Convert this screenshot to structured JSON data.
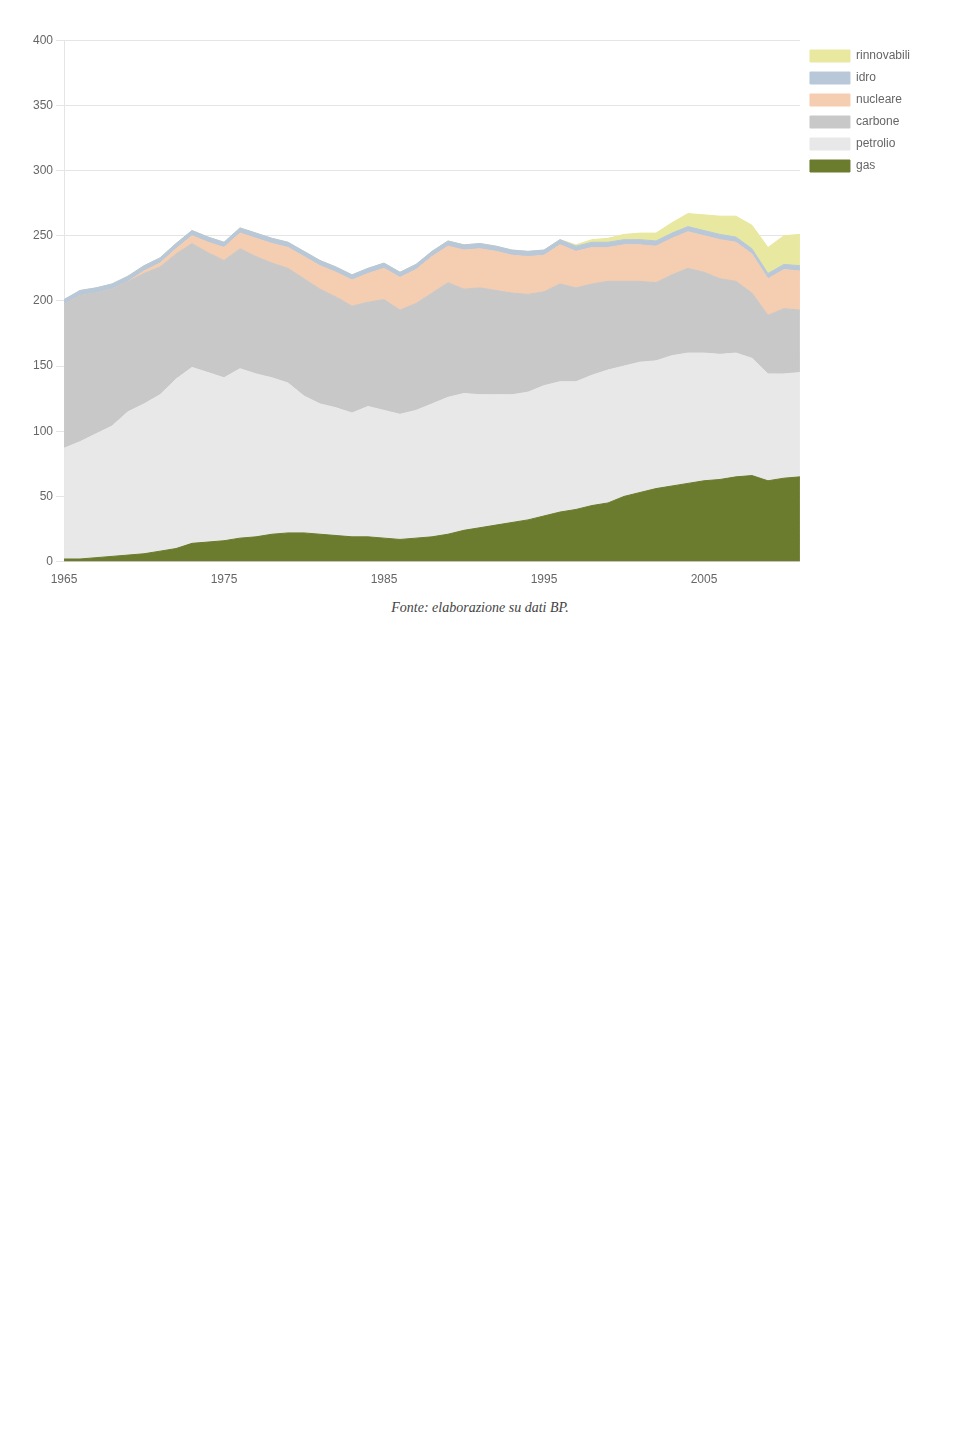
{
  "chart_data": {
    "type": "area",
    "stacked": true,
    "grid": true,
    "legend": "right",
    "annotations": [
      "Fonte: elaborazione su dati BP."
    ],
    "x": [
      1965,
      1966,
      1967,
      1968,
      1969,
      1970,
      1971,
      1972,
      1973,
      1974,
      1975,
      1976,
      1977,
      1978,
      1979,
      1980,
      1981,
      1982,
      1983,
      1984,
      1985,
      1986,
      1987,
      1988,
      1989,
      1990,
      1991,
      1992,
      1993,
      1994,
      1995,
      1996,
      1997,
      1998,
      1999,
      2000,
      2001,
      2002,
      2003,
      2004,
      2005,
      2006,
      2007,
      2008,
      2009,
      2010,
      2011
    ],
    "xlim": [
      1965,
      2011
    ],
    "xticks": [
      1965,
      1975,
      1985,
      1995,
      2005
    ],
    "ylim": [
      0,
      400
    ],
    "yticks": [
      0,
      50,
      100,
      150,
      200,
      250,
      300,
      350,
      400
    ],
    "series": [
      {
        "name": "gas",
        "color": "#6b7c2e",
        "values": [
          2,
          2,
          3,
          4,
          5,
          6,
          8,
          10,
          14,
          15,
          16,
          18,
          19,
          21,
          22,
          22,
          21,
          20,
          19,
          19,
          18,
          17,
          18,
          19,
          21,
          24,
          26,
          28,
          30,
          32,
          35,
          38,
          40,
          43,
          45,
          50,
          53,
          56,
          58,
          60,
          62,
          63,
          65,
          66,
          62,
          64,
          65
        ]
      },
      {
        "name": "petrolio",
        "color": "#e8e8e8",
        "values": [
          85,
          90,
          95,
          100,
          110,
          115,
          120,
          130,
          135,
          130,
          125,
          130,
          125,
          120,
          115,
          105,
          100,
          98,
          95,
          100,
          98,
          96,
          98,
          102,
          105,
          105,
          102,
          100,
          98,
          98,
          100,
          100,
          98,
          100,
          102,
          100,
          100,
          98,
          100,
          100,
          98,
          96,
          95,
          90,
          82,
          80,
          80
        ]
      },
      {
        "name": "carbone",
        "color": "#c8c8c8",
        "values": [
          110,
          112,
          108,
          105,
          100,
          100,
          98,
          96,
          95,
          92,
          90,
          92,
          90,
          88,
          88,
          90,
          88,
          85,
          82,
          80,
          85,
          80,
          82,
          85,
          88,
          80,
          82,
          80,
          78,
          75,
          72,
          75,
          72,
          70,
          68,
          65,
          62,
          60,
          62,
          65,
          62,
          58,
          55,
          50,
          45,
          50,
          48
        ]
      },
      {
        "name": "nucleare",
        "color": "#f5cdb0",
        "values": [
          0,
          0,
          0,
          0,
          0,
          2,
          3,
          4,
          6,
          8,
          10,
          12,
          14,
          15,
          16,
          17,
          18,
          19,
          20,
          22,
          24,
          25,
          26,
          28,
          28,
          30,
          30,
          30,
          29,
          29,
          28,
          30,
          28,
          28,
          26,
          28,
          28,
          28,
          28,
          28,
          28,
          30,
          30,
          30,
          28,
          30,
          30
        ]
      },
      {
        "name": "idro",
        "color": "#b8c8d8",
        "values": [
          4,
          4,
          4,
          4,
          4,
          4,
          4,
          4,
          4,
          4,
          4,
          4,
          4,
          4,
          4,
          4,
          4,
          4,
          4,
          4,
          4,
          4,
          4,
          4,
          4,
          4,
          4,
          4,
          4,
          4,
          4,
          4,
          4,
          4,
          4,
          4,
          4,
          4,
          4,
          4,
          4,
          4,
          4,
          4,
          4,
          4,
          4
        ]
      },
      {
        "name": "rinnovabili",
        "color": "#e8e8a0",
        "values": [
          0,
          0,
          0,
          0,
          0,
          0,
          0,
          0,
          0,
          0,
          0,
          0,
          0,
          0,
          0,
          0,
          0,
          0,
          0,
          0,
          0,
          0,
          0,
          0,
          0,
          0,
          0,
          0,
          0,
          0,
          0,
          0,
          1,
          2,
          3,
          4,
          5,
          6,
          8,
          10,
          12,
          14,
          16,
          18,
          20,
          22,
          24
        ]
      }
    ]
  }
}
